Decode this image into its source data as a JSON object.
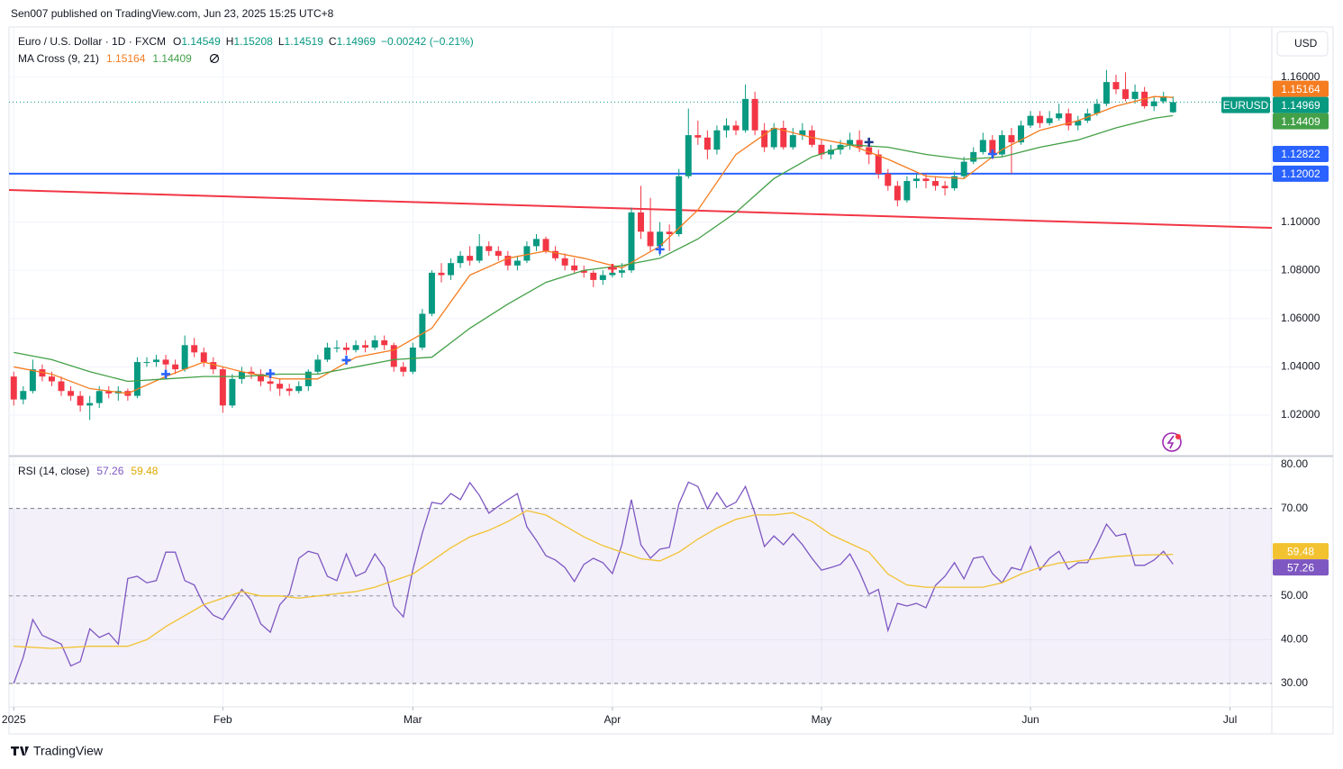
{
  "header": "Sen007 published on TradingView.com, Jun 23, 2025 15:25 UTC+8",
  "footer": "TradingView",
  "chart_data": {
    "type": "candlestick",
    "title": "Euro / U.S. Dollar · 1D · FXCM",
    "ohlc_keys": [
      "O",
      "H",
      "L",
      "C"
    ],
    "change": "−0.00242 (−0.21%)",
    "currency": "USD",
    "symbol": "EURUSD",
    "up_color": "#089981",
    "down_color": "#f23645",
    "grid": true,
    "xlim": [
      -0.5,
      132.4
    ],
    "xticks": [
      {
        "value": 0,
        "label": "2025"
      },
      {
        "value": 22,
        "label": "Feb"
      },
      {
        "value": 42,
        "label": "Mar"
      },
      {
        "value": 63,
        "label": "Apr"
      },
      {
        "value": 85,
        "label": "May"
      },
      {
        "value": 107,
        "label": "Jun"
      },
      {
        "value": 128,
        "label": "Jul"
      }
    ],
    "ylim": [
      1.0036,
      1.1808
    ],
    "yticks": [
      {
        "value": 1.02,
        "label": "1.02000"
      },
      {
        "value": 1.04,
        "label": "1.04000"
      },
      {
        "value": 1.06,
        "label": "1.06000"
      },
      {
        "value": 1.08,
        "label": "1.08000"
      },
      {
        "value": 1.1,
        "label": "1.10000"
      },
      {
        "value": 1.16,
        "label": "1.16000"
      }
    ],
    "candles": [
      [
        1.036,
        1.038,
        1.024,
        1.0265
      ],
      [
        1.0265,
        1.032,
        1.0245,
        1.03
      ],
      [
        1.03,
        1.043,
        1.029,
        1.039
      ],
      [
        1.039,
        1.041,
        1.034,
        1.036
      ],
      [
        1.036,
        1.038,
        1.032,
        1.034
      ],
      [
        1.034,
        1.036,
        1.028,
        1.03
      ],
      [
        1.03,
        1.032,
        1.026,
        1.028
      ],
      [
        1.028,
        1.03,
        1.0215,
        1.024
      ],
      [
        1.024,
        1.028,
        1.018,
        1.025
      ],
      [
        1.025,
        1.032,
        1.023,
        1.03
      ],
      [
        1.03,
        1.032,
        1.027,
        1.029
      ],
      [
        1.029,
        1.032,
        1.026,
        1.03
      ],
      [
        1.03,
        1.031,
        1.026,
        1.028
      ],
      [
        1.028,
        1.044,
        1.027,
        1.042
      ],
      [
        1.042,
        1.044,
        1.04,
        1.042
      ],
      [
        1.042,
        1.045,
        1.04,
        1.043
      ],
      [
        1.043,
        1.045,
        1.039,
        1.041
      ],
      [
        1.041,
        1.043,
        1.037,
        1.039
      ],
      [
        1.039,
        1.053,
        1.038,
        1.049
      ],
      [
        1.049,
        1.052,
        1.044,
        1.046
      ],
      [
        1.046,
        1.048,
        1.04,
        1.042
      ],
      [
        1.042,
        1.044,
        1.037,
        1.039
      ],
      [
        1.039,
        1.04,
        1.021,
        1.024
      ],
      [
        1.024,
        1.037,
        1.023,
        1.035
      ],
      [
        1.035,
        1.04,
        1.033,
        1.038
      ],
      [
        1.038,
        1.04,
        1.035,
        1.037
      ],
      [
        1.037,
        1.039,
        1.032,
        1.034
      ],
      [
        1.034,
        1.036,
        1.03,
        1.033
      ],
      [
        1.033,
        1.035,
        1.028,
        1.031
      ],
      [
        1.031,
        1.033,
        1.028,
        1.03
      ],
      [
        1.03,
        1.034,
        1.029,
        1.032
      ],
      [
        1.032,
        1.039,
        1.03,
        1.038
      ],
      [
        1.038,
        1.045,
        1.037,
        1.043
      ],
      [
        1.043,
        1.05,
        1.042,
        1.048
      ],
      [
        1.048,
        1.051,
        1.046,
        1.048
      ],
      [
        1.048,
        1.05,
        1.045,
        1.047
      ],
      [
        1.047,
        1.051,
        1.046,
        1.049
      ],
      [
        1.049,
        1.051,
        1.046,
        1.048
      ],
      [
        1.048,
        1.053,
        1.047,
        1.051
      ],
      [
        1.051,
        1.053,
        1.047,
        1.049
      ],
      [
        1.049,
        1.05,
        1.038,
        1.04
      ],
      [
        1.04,
        1.042,
        1.036,
        1.038
      ],
      [
        1.038,
        1.05,
        1.037,
        1.048
      ],
      [
        1.048,
        1.064,
        1.047,
        1.062
      ],
      [
        1.062,
        1.08,
        1.061,
        1.079
      ],
      [
        1.079,
        1.083,
        1.075,
        1.078
      ],
      [
        1.078,
        1.085,
        1.076,
        1.083
      ],
      [
        1.083,
        1.088,
        1.081,
        1.086
      ],
      [
        1.086,
        1.09,
        1.082,
        1.084
      ],
      [
        1.084,
        1.095,
        1.083,
        1.09
      ],
      [
        1.09,
        1.092,
        1.086,
        1.088
      ],
      [
        1.088,
        1.09,
        1.084,
        1.086
      ],
      [
        1.086,
        1.088,
        1.08,
        1.082
      ],
      [
        1.082,
        1.086,
        1.08,
        1.084
      ],
      [
        1.084,
        1.092,
        1.083,
        1.09
      ],
      [
        1.09,
        1.095,
        1.088,
        1.093
      ],
      [
        1.093,
        1.094,
        1.087,
        1.088
      ],
      [
        1.088,
        1.09,
        1.084,
        1.085
      ],
      [
        1.085,
        1.087,
        1.08,
        1.082
      ],
      [
        1.082,
        1.085,
        1.079,
        1.08
      ],
      [
        1.08,
        1.082,
        1.077,
        1.079
      ],
      [
        1.079,
        1.08,
        1.073,
        1.076
      ],
      [
        1.076,
        1.08,
        1.074,
        1.078
      ],
      [
        1.078,
        1.082,
        1.077,
        1.079
      ],
      [
        1.079,
        1.083,
        1.077,
        1.08
      ],
      [
        1.08,
        1.106,
        1.079,
        1.104
      ],
      [
        1.104,
        1.115,
        1.093,
        1.096
      ],
      [
        1.096,
        1.11,
        1.088,
        1.09
      ],
      [
        1.09,
        1.1,
        1.086,
        1.096
      ],
      [
        1.096,
        1.099,
        1.088,
        1.095
      ],
      [
        1.095,
        1.122,
        1.094,
        1.119
      ],
      [
        1.119,
        1.147,
        1.118,
        1.136
      ],
      [
        1.136,
        1.142,
        1.132,
        1.135
      ],
      [
        1.135,
        1.138,
        1.126,
        1.13
      ],
      [
        1.13,
        1.14,
        1.128,
        1.138
      ],
      [
        1.138,
        1.143,
        1.135,
        1.14
      ],
      [
        1.14,
        1.142,
        1.136,
        1.138
      ],
      [
        1.138,
        1.157,
        1.137,
        1.151
      ],
      [
        1.151,
        1.154,
        1.136,
        1.138
      ],
      [
        1.138,
        1.141,
        1.129,
        1.131
      ],
      [
        1.131,
        1.141,
        1.13,
        1.139
      ],
      [
        1.139,
        1.142,
        1.13,
        1.131
      ],
      [
        1.131,
        1.139,
        1.13,
        1.136
      ],
      [
        1.136,
        1.141,
        1.134,
        1.138
      ],
      [
        1.138,
        1.14,
        1.131,
        1.132
      ],
      [
        1.132,
        1.134,
        1.126,
        1.128
      ],
      [
        1.128,
        1.132,
        1.126,
        1.13
      ],
      [
        1.13,
        1.134,
        1.128,
        1.132
      ],
      [
        1.132,
        1.137,
        1.13,
        1.134
      ],
      [
        1.134,
        1.138,
        1.129,
        1.131
      ],
      [
        1.131,
        1.133,
        1.124,
        1.128
      ],
      [
        1.128,
        1.13,
        1.118,
        1.12
      ],
      [
        1.12,
        1.122,
        1.113,
        1.115
      ],
      [
        1.115,
        1.117,
        1.1065,
        1.109
      ],
      [
        1.109,
        1.119,
        1.108,
        1.117
      ],
      [
        1.117,
        1.12,
        1.114,
        1.118
      ],
      [
        1.118,
        1.12,
        1.114,
        1.117
      ],
      [
        1.117,
        1.119,
        1.113,
        1.115
      ],
      [
        1.115,
        1.117,
        1.111,
        1.114
      ],
      [
        1.114,
        1.121,
        1.113,
        1.119
      ],
      [
        1.119,
        1.127,
        1.118,
        1.125
      ],
      [
        1.125,
        1.131,
        1.124,
        1.129
      ],
      [
        1.129,
        1.137,
        1.128,
        1.134
      ],
      [
        1.134,
        1.136,
        1.126,
        1.128
      ],
      [
        1.128,
        1.138,
        1.127,
        1.136
      ],
      [
        1.136,
        1.139,
        1.12,
        1.133
      ],
      [
        1.133,
        1.142,
        1.132,
        1.14
      ],
      [
        1.14,
        1.146,
        1.139,
        1.144
      ],
      [
        1.144,
        1.146,
        1.139,
        1.141
      ],
      [
        1.141,
        1.146,
        1.14,
        1.143
      ],
      [
        1.143,
        1.149,
        1.142,
        1.145
      ],
      [
        1.145,
        1.147,
        1.138,
        1.14
      ],
      [
        1.14,
        1.144,
        1.138,
        1.142
      ],
      [
        1.142,
        1.147,
        1.141,
        1.145
      ],
      [
        1.145,
        1.151,
        1.144,
        1.149
      ],
      [
        1.149,
        1.163,
        1.148,
        1.158
      ],
      [
        1.158,
        1.161,
        1.153,
        1.155
      ],
      [
        1.155,
        1.162,
        1.15,
        1.151
      ],
      [
        1.151,
        1.157,
        1.149,
        1.154
      ],
      [
        1.154,
        1.156,
        1.147,
        1.148
      ],
      [
        1.148,
        1.152,
        1.146,
        1.15
      ],
      [
        1.15,
        1.154,
        1.149,
        1.1521
      ],
      [
        1.14549,
        1.15208,
        1.14519,
        1.14969
      ]
    ],
    "ma": {
      "name": "MA Cross (9, 21)",
      "series": [
        {
          "color": "#f57c1f",
          "x": [
            0,
            4,
            8,
            12,
            16,
            20,
            24,
            28,
            32,
            36,
            40,
            44,
            48,
            52,
            56,
            60,
            64,
            68,
            72,
            76,
            80,
            84,
            88,
            92,
            96,
            100,
            104,
            108,
            112,
            116,
            120,
            122
          ],
          "values": [
            1.04,
            1.037,
            1.031,
            1.029,
            1.036,
            1.042,
            1.038,
            1.035,
            1.035,
            1.044,
            1.047,
            1.056,
            1.078,
            1.085,
            1.088,
            1.085,
            1.081,
            1.09,
            1.105,
            1.128,
            1.139,
            1.135,
            1.132,
            1.126,
            1.119,
            1.118,
            1.13,
            1.138,
            1.142,
            1.148,
            1.152,
            1.15164
          ]
        },
        {
          "color": "#43a047",
          "x": [
            0,
            4,
            8,
            12,
            16,
            20,
            24,
            28,
            32,
            36,
            40,
            44,
            48,
            52,
            56,
            60,
            64,
            68,
            72,
            76,
            80,
            84,
            88,
            92,
            96,
            100,
            104,
            108,
            112,
            116,
            120,
            122
          ],
          "values": [
            1.046,
            1.043,
            1.038,
            1.034,
            1.035,
            1.036,
            1.036,
            1.037,
            1.037,
            1.04,
            1.043,
            1.044,
            1.056,
            1.066,
            1.075,
            1.08,
            1.082,
            1.085,
            1.093,
            1.104,
            1.118,
            1.127,
            1.132,
            1.131,
            1.128,
            1.126,
            1.127,
            1.131,
            1.134,
            1.139,
            1.143,
            1.14409
          ]
        }
      ]
    },
    "crosses": {
      "x": [
        16,
        27,
        35,
        63,
        68,
        90,
        103
      ],
      "values": [
        1.037,
        1.0372,
        1.0428,
        1.0808,
        1.0887,
        1.1331,
        1.1282
      ],
      "colors": [
        "#2962ff",
        "#2962ff",
        "#2962ff",
        "#f23645",
        "#2962ff",
        "#1e3a8a",
        "#2962ff"
      ]
    },
    "hlines": [
      {
        "value": 1.12002,
        "color": "#2962ff"
      }
    ],
    "tags": [
      {
        "value": 1.12822,
        "color": "#2962ff"
      }
    ],
    "trendline": {
      "color": "#f23645",
      "x": [
        -0.5,
        132.4
      ],
      "values": [
        1.1133,
        1.0976
      ]
    },
    "rsi": {
      "name": "RSI (14, close)",
      "ylim": [
        24.65,
        81.65
      ],
      "yticks": [
        {
          "value": 30,
          "label": "30.00"
        },
        {
          "value": 40,
          "label": "40.00"
        },
        {
          "value": 50,
          "label": "50.00"
        },
        {
          "value": 70,
          "label": "70.00"
        },
        {
          "value": 80,
          "label": "80.00"
        }
      ],
      "bands": [
        30,
        70
      ],
      "midline": 50,
      "series": [
        {
          "color": "#7e57c2",
          "values": [
            30,
            36,
            44.6,
            41,
            40,
            39,
            34,
            35,
            42.5,
            40.5,
            41.5,
            39,
            54,
            54.5,
            53,
            53.5,
            60,
            60,
            53.5,
            52.5,
            48,
            45.6,
            44.6,
            48,
            51.5,
            49,
            43.6,
            41.7,
            48,
            50.4,
            58.6,
            60.2,
            59.6,
            54.5,
            53.5,
            59.6,
            54.5,
            55.5,
            59.6,
            56.5,
            47.7,
            45.2,
            56,
            64.4,
            71.4,
            71,
            73.4,
            72,
            75.9,
            73,
            68.9,
            70.5,
            72,
            73.4,
            65.8,
            62.7,
            59.2,
            58.2,
            56.5,
            53.3,
            57.2,
            58.6,
            57.6,
            55.1,
            61.7,
            72,
            61.7,
            58.6,
            60.7,
            61.1,
            71,
            76,
            75,
            69.9,
            73.6,
            70.3,
            71.4,
            75,
            68.9,
            61.3,
            63.7,
            61.7,
            64.2,
            61.7,
            58.6,
            55.9,
            56.5,
            57.2,
            59.6,
            55.5,
            50.4,
            51.5,
            42.1,
            48.3,
            47.7,
            48.3,
            47.3,
            52.4,
            54.5,
            57.6,
            53.9,
            58.6,
            59,
            55.1,
            53,
            56.5,
            55.9,
            61.3,
            55.9,
            58.6,
            60.2,
            56.1,
            57.6,
            57.6,
            61.7,
            66.4,
            63.7,
            64.2,
            57,
            57,
            58.2,
            60.2,
            57.26
          ]
        },
        {
          "color": "#f2c230",
          "x": [
            0,
            4,
            8,
            12,
            14,
            16,
            18,
            20,
            22,
            24,
            26,
            28,
            30,
            32,
            34,
            36,
            38,
            40,
            42,
            44,
            46,
            48,
            50,
            52,
            54,
            56,
            58,
            60,
            62,
            64,
            66,
            68,
            70,
            72,
            74,
            76,
            78,
            80,
            82,
            84,
            86,
            88,
            90,
            92,
            94,
            96,
            98,
            100,
            102,
            104,
            106,
            108,
            110,
            112,
            114,
            116,
            118,
            120,
            122
          ],
          "values": [
            38.5,
            38,
            38.5,
            38.5,
            40,
            43,
            45.5,
            48,
            49.5,
            51,
            50,
            50,
            49.5,
            50,
            50.5,
            51,
            52,
            53.5,
            55,
            58,
            61,
            63.5,
            65,
            67,
            69.5,
            68.5,
            66,
            63.5,
            61.5,
            60,
            58.5,
            58,
            60,
            63,
            65.5,
            67.5,
            68.5,
            68.5,
            69,
            67,
            64,
            62,
            60,
            55,
            52.5,
            52,
            52,
            52,
            52,
            53,
            55,
            56.5,
            57.5,
            58,
            58.5,
            59,
            59.3,
            59.4,
            59.48
          ]
        }
      ]
    }
  }
}
